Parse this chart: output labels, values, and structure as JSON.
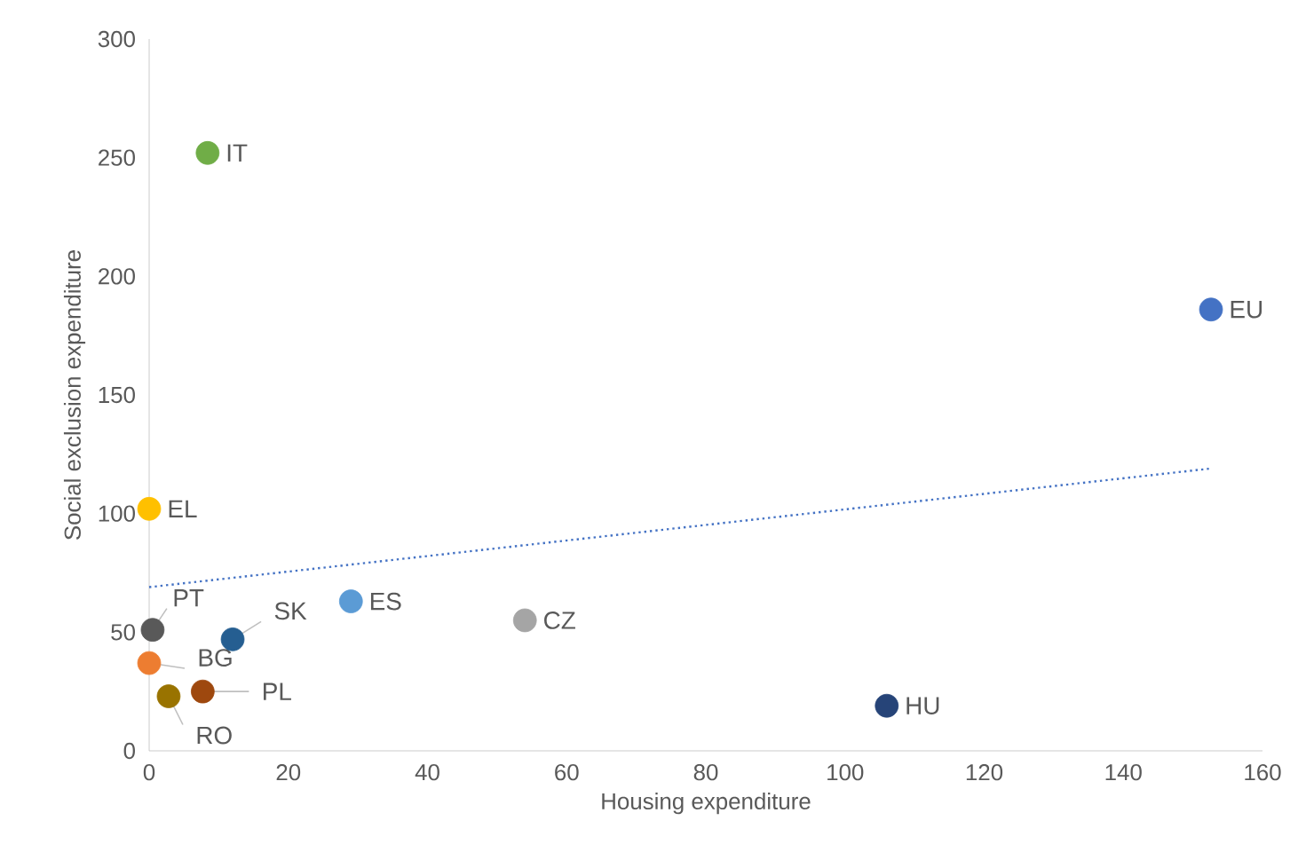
{
  "chart_data": {
    "type": "scatter",
    "xlabel": "Housing expenditure",
    "ylabel": "Social exclusion expenditure",
    "xlim": [
      0,
      160
    ],
    "ylim": [
      0,
      300
    ],
    "xticks": [
      0,
      20,
      40,
      60,
      80,
      100,
      120,
      140,
      160
    ],
    "yticks": [
      0,
      50,
      100,
      150,
      200,
      250,
      300
    ],
    "marker": "circle",
    "series": [
      {
        "name": "IT",
        "color": "#70ad47",
        "x": [
          8.4
        ],
        "values": [
          252
        ]
      },
      {
        "name": "EU",
        "color": "#4472c4",
        "x": [
          152.6
        ],
        "values": [
          186
        ]
      },
      {
        "name": "EL",
        "color": "#ffc000",
        "x": [
          0
        ],
        "values": [
          102
        ]
      },
      {
        "name": "PT",
        "color": "#595959",
        "x": [
          0.5
        ],
        "values": [
          51
        ]
      },
      {
        "name": "SK",
        "color": "#255e91",
        "x": [
          12
        ],
        "values": [
          47
        ]
      },
      {
        "name": "ES",
        "color": "#5b9bd5",
        "x": [
          29
        ],
        "values": [
          63
        ]
      },
      {
        "name": "CZ",
        "color": "#a5a5a5",
        "x": [
          54
        ],
        "values": [
          55
        ]
      },
      {
        "name": "BG",
        "color": "#ed7d31",
        "x": [
          0
        ],
        "values": [
          37
        ]
      },
      {
        "name": "RO",
        "color": "#997300",
        "x": [
          2.8
        ],
        "values": [
          23
        ]
      },
      {
        "name": "PL",
        "color": "#9e480e",
        "x": [
          7.7
        ],
        "values": [
          25
        ]
      },
      {
        "name": "HU",
        "color": "#264478",
        "x": [
          106
        ],
        "values": [
          19
        ]
      },
      {
        "type": "line",
        "color": "#4472c4",
        "line_style": "dotted",
        "marker": "none",
        "x": [
          0,
          152.6
        ],
        "values": [
          69,
          119
        ]
      }
    ]
  }
}
